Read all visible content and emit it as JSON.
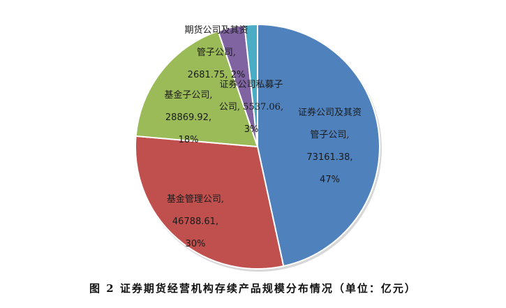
{
  "chart_data": {
    "type": "pie",
    "title": "",
    "unit": "亿元",
    "start_angle": "12 o'clock, clockwise",
    "categories": [
      "证券公司及其资管子公司",
      "基金管理公司",
      "基金子公司",
      "证券公司私募子公司",
      "期货公司及其资管子公司"
    ],
    "values": [
      73161.38,
      46788.61,
      28869.92,
      5537.06,
      2681.75
    ],
    "percent_labels": [
      "47%",
      "30%",
      "18%",
      "3%",
      "2%"
    ],
    "colors": [
      "#4F81BD",
      "#C0504D",
      "#9BBB59",
      "#8064A2",
      "#4BACC6"
    ],
    "legend": "none (data labels on slices)"
  },
  "labels": [
    {
      "name": "证券公司及其资管子公司",
      "line1": "证券公司及其资",
      "line2": "管子公司,",
      "value": "73161.38,",
      "pct": "47%"
    },
    {
      "name": "基金管理公司",
      "line1": "基金管理公司,",
      "value": "46788.61,",
      "pct": "30%"
    },
    {
      "name": "基金子公司",
      "line1": "基金子公司,",
      "value": "28869.92,",
      "pct": "18%"
    },
    {
      "name": "证券公司私募子公司",
      "line1": "证券公司私募子",
      "line2": "公司, 5537.06,",
      "pct": "3%"
    },
    {
      "name": "期货公司及其资管子公司",
      "line1": "期货公司及其资",
      "line2": "管子公司,",
      "value": "2681.75, 2%"
    }
  ],
  "caption": "图 2   证券期货经营机构存续产品规模分布情况（单位：亿元）"
}
